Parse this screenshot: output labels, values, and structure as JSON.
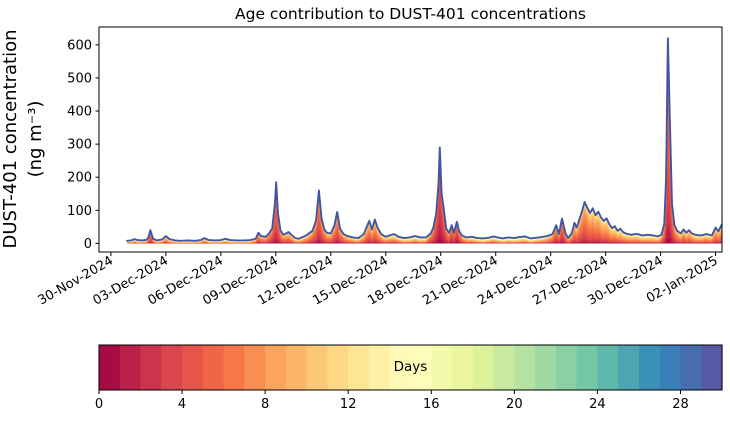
{
  "chart": {
    "title": "Age contribution to DUST-401 concentrations",
    "ylabel_line1": "DUST-401 concentration",
    "ylabel_line2": "(ng m⁻³)",
    "colorbar_label": "Days"
  },
  "chart_data": {
    "type": "area",
    "stacked": true,
    "title": "Age contribution to DUST-401 concentrations",
    "xlabel": "",
    "ylabel": "DUST-401 concentration (ng m⁻³)",
    "x_unit": "days since 30-Nov-2024 00:00 UTC",
    "xlim": [
      -0.65,
      33.35
    ],
    "ylim": [
      -26,
      654
    ],
    "grid": false,
    "x_tick_days": [
      0,
      3,
      6,
      9,
      12,
      15,
      18,
      21,
      24,
      27,
      30,
      33
    ],
    "x_tick_labels": [
      "30-Nov-2024",
      "03-Dec-2024",
      "06-Dec-2024",
      "09-Dec-2024",
      "12-Dec-2024",
      "15-Dec-2024",
      "18-Dec-2024",
      "21-Dec-2024",
      "24-Dec-2024",
      "27-Dec-2024",
      "30-Dec-2024",
      "02-Jan-2025"
    ],
    "y_ticks": [
      0,
      100,
      200,
      300,
      400,
      500,
      600
    ],
    "age_bins": {
      "vmin": 0,
      "vmax": 30,
      "n_bands": 30,
      "unit": "Days"
    },
    "colorbar_ticks": [
      0,
      4,
      8,
      12,
      16,
      20,
      24,
      28
    ],
    "colormap_name": "Spectral",
    "colormap_anchors": [
      "#9e0142",
      "#d53e4f",
      "#f46d43",
      "#fdae61",
      "#fee08b",
      "#ffffbf",
      "#e6f598",
      "#abdda4",
      "#66c2a5",
      "#3288bd",
      "#5e4fa2"
    ],
    "outline_color": "#4156a2",
    "samples_note": "total = summed DUST-401 concentration (ng m-3); mean_age = approximate dominant plume age (days) inferred from stacked band colors",
    "samples": {
      "day": [
        0.88,
        1.1,
        1.3,
        1.45,
        1.7,
        1.95,
        2.05,
        2.15,
        2.3,
        2.5,
        2.8,
        3.0,
        3.2,
        3.5,
        3.8,
        4.2,
        4.6,
        4.9,
        5.1,
        5.35,
        5.7,
        6.0,
        6.25,
        6.5,
        6.9,
        7.3,
        7.6,
        7.9,
        8.05,
        8.2,
        8.45,
        8.6,
        8.8,
        8.95,
        9.02,
        9.12,
        9.25,
        9.4,
        9.55,
        9.7,
        9.85,
        10.05,
        10.25,
        10.5,
        10.7,
        10.85,
        11.0,
        11.2,
        11.35,
        11.5,
        11.65,
        11.8,
        12.0,
        12.2,
        12.35,
        12.5,
        12.7,
        12.9,
        13.2,
        13.5,
        13.8,
        13.95,
        14.1,
        14.25,
        14.4,
        14.55,
        14.75,
        15.0,
        15.2,
        15.45,
        15.7,
        16.0,
        16.3,
        16.6,
        16.9,
        17.2,
        17.45,
        17.6,
        17.75,
        17.88,
        17.95,
        18.05,
        18.15,
        18.3,
        18.45,
        18.6,
        18.72,
        18.88,
        19.0,
        19.15,
        19.4,
        19.7,
        20.0,
        20.3,
        20.6,
        20.9,
        21.1,
        21.4,
        21.7,
        22.0,
        22.3,
        22.6,
        22.9,
        23.2,
        23.5,
        23.8,
        24.1,
        24.3,
        24.45,
        24.62,
        24.8,
        24.95,
        25.15,
        25.3,
        25.42,
        25.55,
        25.7,
        25.85,
        26.0,
        26.15,
        26.3,
        26.45,
        26.6,
        26.75,
        26.9,
        27.05,
        27.2,
        27.35,
        27.5,
        27.65,
        27.8,
        27.95,
        28.1,
        28.4,
        28.7,
        29.0,
        29.3,
        29.6,
        29.85,
        30.05,
        30.2,
        30.3,
        30.4,
        30.5,
        30.62,
        30.75,
        30.9,
        31.1,
        31.25,
        31.4,
        31.55,
        31.7,
        31.9,
        32.2,
        32.5,
        32.8,
        33.0,
        33.15,
        33.33
      ],
      "total": [
        8,
        9,
        13,
        10,
        9,
        11,
        18,
        40,
        14,
        9,
        12,
        22,
        13,
        9,
        8,
        9,
        8,
        10,
        16,
        10,
        9,
        10,
        14,
        10,
        9,
        9,
        10,
        14,
        32,
        22,
        20,
        28,
        45,
        120,
        185,
        90,
        40,
        26,
        30,
        34,
        26,
        16,
        14,
        20,
        26,
        32,
        38,
        70,
        160,
        75,
        42,
        32,
        30,
        55,
        95,
        45,
        28,
        22,
        18,
        16,
        28,
        48,
        68,
        42,
        72,
        48,
        28,
        20,
        24,
        28,
        20,
        16,
        18,
        22,
        18,
        18,
        30,
        48,
        90,
        180,
        290,
        150,
        110,
        45,
        32,
        55,
        32,
        65,
        38,
        24,
        18,
        20,
        16,
        15,
        17,
        21,
        18,
        15,
        18,
        16,
        19,
        21,
        15,
        17,
        19,
        22,
        28,
        55,
        28,
        75,
        32,
        16,
        30,
        62,
        48,
        70,
        95,
        125,
        108,
        92,
        106,
        85,
        96,
        78,
        68,
        76,
        58,
        46,
        52,
        38,
        44,
        34,
        30,
        26,
        29,
        24,
        26,
        24,
        21,
        26,
        60,
        200,
        620,
        380,
        120,
        55,
        38,
        30,
        42,
        32,
        40,
        30,
        26,
        24,
        28,
        24,
        48,
        36,
        56
      ],
      "mean_age": [
        12,
        12,
        10,
        12,
        12,
        10,
        7,
        5,
        8,
        12,
        10,
        8,
        10,
        12,
        13,
        13,
        13,
        11,
        9,
        12,
        13,
        12,
        11,
        12,
        13,
        13,
        12,
        9,
        6,
        7,
        7,
        6,
        5,
        4.5,
        4.5,
        5,
        6,
        7,
        7,
        7,
        8,
        10,
        10,
        9,
        8,
        7,
        6,
        5.5,
        5,
        5.5,
        6,
        7,
        7,
        6,
        5.5,
        6,
        7,
        8,
        9,
        10,
        8,
        7,
        6.5,
        7,
        6.5,
        7,
        8,
        9,
        9,
        9,
        10,
        11,
        11,
        10,
        11,
        10,
        6,
        5,
        4,
        3.5,
        3.2,
        3.5,
        4,
        5,
        6,
        4,
        5,
        3.5,
        5,
        7,
        9,
        10,
        11,
        12,
        11,
        10,
        11,
        12,
        11,
        12,
        11,
        11,
        12,
        11,
        10,
        9,
        7,
        5,
        6,
        4.5,
        6,
        8,
        7,
        6.5,
        7,
        6.5,
        6,
        6,
        6.5,
        7,
        7,
        7,
        7,
        7.5,
        7.5,
        7.5,
        8,
        8,
        8,
        8.5,
        8.5,
        9,
        9,
        9,
        9,
        10,
        10,
        10,
        10,
        8,
        6,
        5,
        4.5,
        4.5,
        5,
        6,
        7,
        8,
        7,
        8,
        7.5,
        8,
        9,
        9,
        8.5,
        9,
        7,
        7.5,
        7
      ]
    }
  }
}
